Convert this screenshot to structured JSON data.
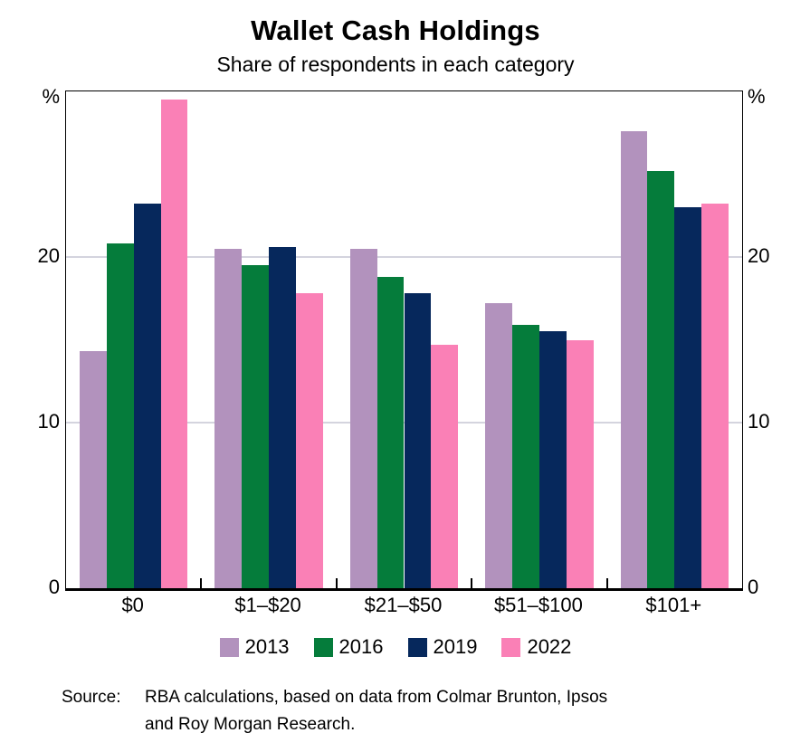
{
  "chart_data": {
    "type": "bar",
    "title": "Wallet Cash Holdings",
    "subtitle": "Share of respondents in each category",
    "unit": "%",
    "categories": [
      "$0",
      "$1–$20",
      "$21–$50",
      "$51–$100",
      "$101+"
    ],
    "series": [
      {
        "name": "2013",
        "color": "#B292BD",
        "values": [
          14.3,
          20.5,
          20.5,
          17.2,
          27.6
        ]
      },
      {
        "name": "2016",
        "color": "#057C3B",
        "values": [
          20.8,
          19.5,
          18.8,
          15.9,
          25.2
        ]
      },
      {
        "name": "2019",
        "color": "#06285C",
        "values": [
          23.2,
          20.6,
          17.8,
          15.5,
          23.0
        ]
      },
      {
        "name": "2022",
        "color": "#FA80B6",
        "values": [
          29.5,
          17.8,
          14.7,
          15.0,
          23.2
        ]
      }
    ],
    "ylim": [
      0,
      30
    ],
    "yticks": [
      0,
      10,
      20
    ],
    "grid": true,
    "legend_position": "bottom",
    "axis_color": "#000000",
    "gridline_color": "#d4d4de"
  },
  "source": {
    "label": "Source:",
    "line1": "RBA calculations, based on data from Colmar Brunton, Ipsos",
    "line2": "and Roy Morgan Research."
  }
}
